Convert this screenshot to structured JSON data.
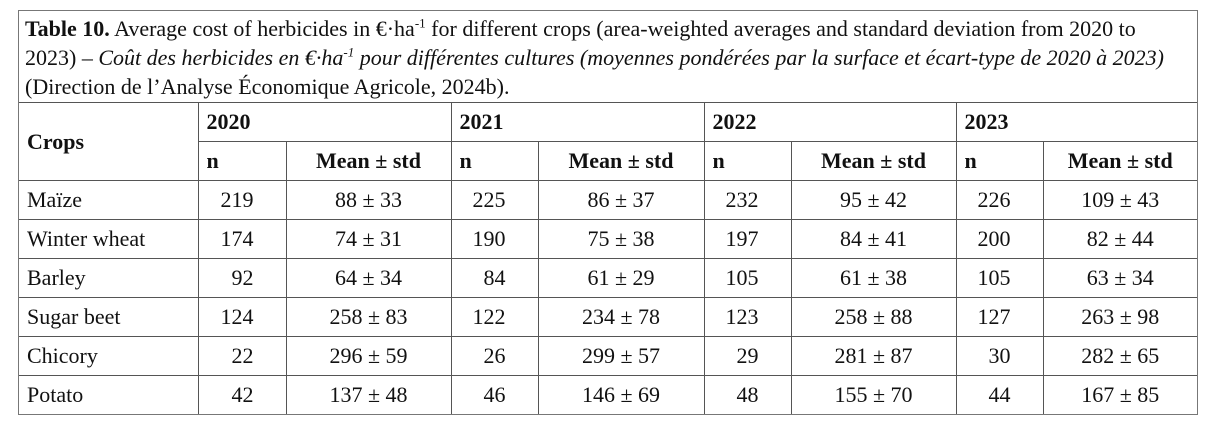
{
  "caption": {
    "label": "Table 10.",
    "text1": " Average cost of herbicides in €·ha",
    "sup1": "-1",
    "text2": " for different crops (area-weighted averages and standard deviation from 2020 to 2023) – ",
    "italic1": "Coût des herbicides en €·ha",
    "sup2": "-1",
    "italic2": " pour différentes cultures (moyennes pondérées par la surface et écart-type de 2020 à 2023)",
    "text3": " (Direction de l’Analyse Économique Agricole, 2024b)."
  },
  "table": {
    "crops_header": "Crops",
    "years": [
      {
        "year": "2020",
        "n_header": "n",
        "mean_header": "Mean ± std"
      },
      {
        "year": "2021",
        "n_header": "n",
        "mean_header": "Mean ± std"
      },
      {
        "year": "2022",
        "n_header": "n",
        "mean_header": "Mean ± std"
      },
      {
        "year": "2023",
        "n_header": "n",
        "mean_header": "Mean ± std"
      }
    ],
    "rows": [
      {
        "crop": "Maïze",
        "cells": [
          [
            219,
            "88 ± 33"
          ],
          [
            225,
            "86 ± 37"
          ],
          [
            232,
            "95 ± 42"
          ],
          [
            226,
            "109 ± 43"
          ]
        ]
      },
      {
        "crop": "Winter wheat",
        "cells": [
          [
            174,
            "74 ± 31"
          ],
          [
            190,
            "75 ± 38"
          ],
          [
            197,
            "84 ± 41"
          ],
          [
            200,
            "82 ± 44"
          ]
        ]
      },
      {
        "crop": "Barley",
        "cells": [
          [
            92,
            "64 ± 34"
          ],
          [
            84,
            "61 ± 29"
          ],
          [
            105,
            "61 ± 38"
          ],
          [
            105,
            "63 ± 34"
          ]
        ]
      },
      {
        "crop": "Sugar beet",
        "cells": [
          [
            124,
            "258 ± 83"
          ],
          [
            122,
            "234 ± 78"
          ],
          [
            123,
            "258 ± 88"
          ],
          [
            127,
            "263 ± 98"
          ]
        ]
      },
      {
        "crop": "Chicory",
        "cells": [
          [
            22,
            "296 ± 59"
          ],
          [
            26,
            "299 ± 57"
          ],
          [
            29,
            "281 ± 87"
          ],
          [
            30,
            "282 ± 65"
          ]
        ]
      },
      {
        "crop": "Potato",
        "cells": [
          [
            42,
            "137 ± 48"
          ],
          [
            46,
            "146 ± 69"
          ],
          [
            48,
            "155 ± 70"
          ],
          [
            44,
            "167 ± 85"
          ]
        ]
      }
    ]
  }
}
